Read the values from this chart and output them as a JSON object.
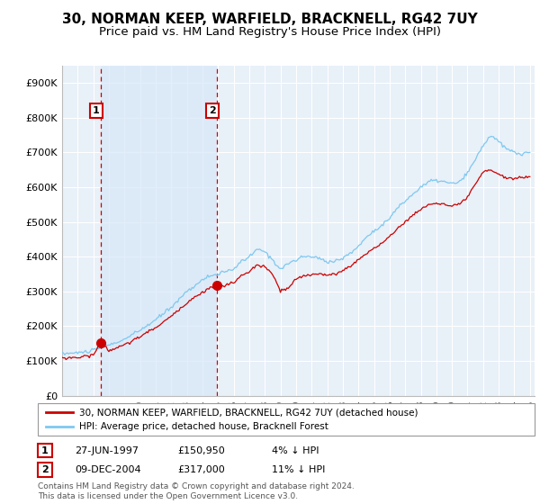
{
  "title": "30, NORMAN KEEP, WARFIELD, BRACKNELL, RG42 7UY",
  "subtitle": "Price paid vs. HM Land Registry's House Price Index (HPI)",
  "ylabel_ticks": [
    "£0",
    "£100K",
    "£200K",
    "£300K",
    "£400K",
    "£500K",
    "£600K",
    "£700K",
    "£800K",
    "£900K"
  ],
  "ytick_values": [
    0,
    100000,
    200000,
    300000,
    400000,
    500000,
    600000,
    700000,
    800000,
    900000
  ],
  "ylim": [
    0,
    950000
  ],
  "xlim_start": 1995.0,
  "xlim_end": 2025.3,
  "xtick_years": [
    1995,
    1996,
    1997,
    1998,
    1999,
    2000,
    2001,
    2002,
    2003,
    2004,
    2005,
    2006,
    2007,
    2008,
    2009,
    2010,
    2011,
    2012,
    2013,
    2014,
    2015,
    2016,
    2017,
    2018,
    2019,
    2020,
    2021,
    2022,
    2023,
    2024,
    2025
  ],
  "purchase1_x": 1997.49,
  "purchase1_y": 150950,
  "purchase2_x": 2004.94,
  "purchase2_y": 317000,
  "vline1_x": 1997.49,
  "vline2_x": 2004.94,
  "purchase1_date": "27-JUN-1997",
  "purchase1_price": "£150,950",
  "purchase1_hpi": "4% ↓ HPI",
  "purchase2_date": "09-DEC-2004",
  "purchase2_price": "£317,000",
  "purchase2_hpi": "11% ↓ HPI",
  "legend_line1": "30, NORMAN KEEP, WARFIELD, BRACKNELL, RG42 7UY (detached house)",
  "legend_line2": "HPI: Average price, detached house, Bracknell Forest",
  "footer": "Contains HM Land Registry data © Crown copyright and database right 2024.\nThis data is licensed under the Open Government Licence v3.0.",
  "hpi_color": "#7EC8F0",
  "price_color": "#CC0000",
  "shade_color": "#D8E8F8",
  "background_color": "#E8F0F8",
  "grid_color": "#FFFFFF",
  "title_fontsize": 11,
  "subtitle_fontsize": 9.5
}
